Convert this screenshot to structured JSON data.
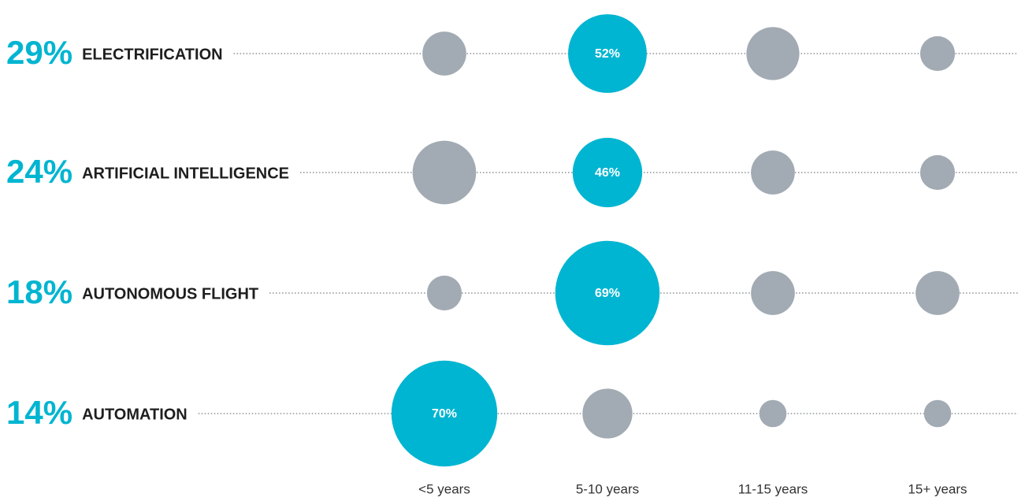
{
  "chart_data": {
    "type": "bubble_matrix",
    "categories": [
      "<5 years",
      "5-10 years",
      "11-15 years",
      "15+ years"
    ],
    "color": "#a2abb3",
    "highlight_color": "#00b5d1",
    "series": [
      {
        "name": "ELECTRIFICATION",
        "total": 29,
        "total_label": "29%",
        "values": [
          29,
          52,
          35,
          23
        ],
        "value_labels": [
          null,
          "52%",
          null,
          null
        ]
      },
      {
        "name": "ARTIFICIAL INTELLIGENCE",
        "total": 24,
        "total_label": "24%",
        "values": [
          42,
          46,
          29,
          23
        ],
        "value_labels": [
          null,
          "46%",
          null,
          null
        ]
      },
      {
        "name": "AUTONOMOUS FLIGHT",
        "total": 18,
        "total_label": "18%",
        "values": [
          23,
          69,
          29,
          29
        ],
        "value_labels": [
          null,
          "69%",
          null,
          null
        ]
      },
      {
        "name": "AUTOMATION",
        "total": 14,
        "total_label": "14%",
        "values": [
          70,
          33,
          18,
          18
        ],
        "value_labels": [
          "70%",
          null,
          null,
          null
        ]
      }
    ]
  }
}
